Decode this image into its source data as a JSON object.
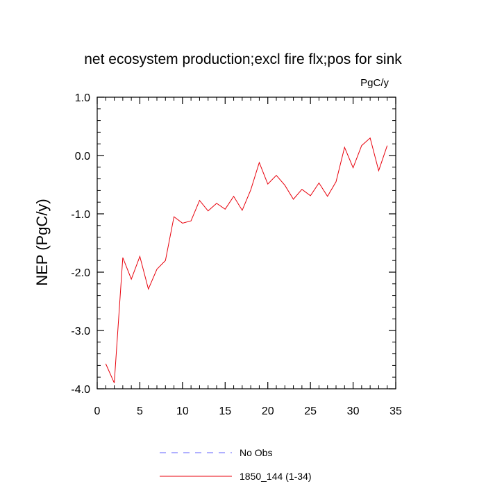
{
  "chart_data": {
    "type": "line",
    "title": "net ecosystem production;excl fire flx;pos for sink",
    "units": "PgC/y",
    "xlabel": "",
    "ylabel": "NEP  (PgC/y)",
    "xlim": [
      0,
      35
    ],
    "ylim": [
      -4.0,
      1.0
    ],
    "xticks": [
      0,
      5,
      10,
      15,
      20,
      25,
      30,
      35
    ],
    "xtick_labels": [
      "0",
      "5",
      "10",
      "15",
      "20",
      "25",
      "30",
      "35"
    ],
    "yticks": [
      -4.0,
      -3.0,
      -2.0,
      -1.0,
      0.0,
      1.0
    ],
    "ytick_labels": [
      "-4.0",
      "-3.0",
      "-2.0",
      "-1.0",
      "0.0",
      "1.0"
    ],
    "grid": false,
    "legend_position": "bottom",
    "series": [
      {
        "name": "No Obs",
        "color": "#6060ff",
        "dash": "dashed",
        "x": [],
        "y": []
      },
      {
        "name": "1850_144 (1-34)",
        "color": "#e8000b",
        "dash": "solid",
        "x": [
          1,
          2,
          3,
          4,
          5,
          6,
          7,
          8,
          9,
          10,
          11,
          12,
          13,
          14,
          15,
          16,
          17,
          18,
          19,
          20,
          21,
          22,
          23,
          24,
          25,
          26,
          27,
          28,
          29,
          30,
          31,
          32,
          33,
          34
        ],
        "y": [
          -3.57,
          -3.9,
          -1.75,
          -2.12,
          -1.73,
          -2.29,
          -1.95,
          -1.8,
          -1.05,
          -1.16,
          -1.12,
          -0.77,
          -0.95,
          -0.82,
          -0.92,
          -0.7,
          -0.94,
          -0.59,
          -0.12,
          -0.49,
          -0.34,
          -0.51,
          -0.75,
          -0.58,
          -0.69,
          -0.47,
          -0.7,
          -0.45,
          0.14,
          -0.21,
          0.17,
          0.3,
          -0.26,
          0.17
        ]
      }
    ]
  }
}
